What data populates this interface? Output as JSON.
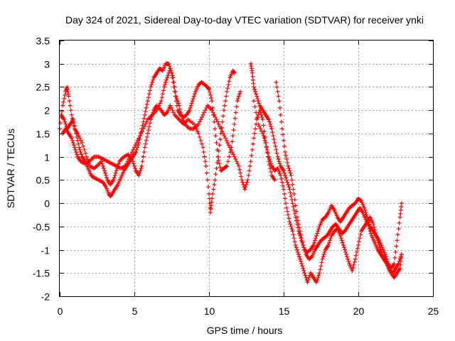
{
  "chart_data": {
    "type": "scatter",
    "title": "Day 324 of 2021, Sidereal Day-to-day VTEC variation (SDTVAR) for receiver ynki",
    "xlabel": "GPS time / hours",
    "ylabel": "SDTVAR / TECUs",
    "xlim": [
      0,
      25
    ],
    "ylim": [
      -2,
      3.5
    ],
    "xticks": [
      0,
      5,
      10,
      15,
      20,
      25
    ],
    "yticks": [
      -2,
      -1.5,
      -1,
      -0.5,
      0,
      0.5,
      1,
      1.5,
      2,
      2.5,
      3,
      3.5
    ],
    "grid": true,
    "marker": "+",
    "color": "#ff0000",
    "series": [
      {
        "values": [
          [
            0.0,
            1.6
          ],
          [
            0.2,
            2.1
          ],
          [
            0.4,
            2.4
          ],
          [
            0.5,
            2.5
          ],
          [
            0.6,
            2.3
          ],
          [
            0.8,
            1.9
          ],
          [
            1.0,
            1.6
          ],
          [
            1.2,
            1.5
          ],
          [
            1.5,
            1.3
          ],
          [
            1.8,
            1.0
          ],
          [
            2.0,
            0.8
          ],
          [
            2.3,
            0.75
          ],
          [
            2.5,
            0.8
          ],
          [
            2.8,
            0.9
          ],
          [
            3.0,
            0.7
          ],
          [
            3.2,
            0.5
          ],
          [
            3.4,
            0.4
          ],
          [
            3.6,
            0.5
          ],
          [
            3.8,
            0.7
          ],
          [
            4.0,
            0.9
          ],
          [
            4.3,
            1.0
          ],
          [
            4.6,
            1.05
          ],
          [
            4.9,
            0.9
          ],
          [
            5.1,
            0.7
          ],
          [
            5.3,
            0.6
          ],
          [
            5.5,
            0.8
          ],
          [
            5.7,
            1.2
          ],
          [
            5.9,
            1.5
          ],
          [
            6.1,
            1.8
          ],
          [
            6.3,
            2.0
          ],
          [
            6.5,
            2.1
          ],
          [
            6.8,
            2.0
          ],
          [
            7.0,
            1.9
          ],
          [
            7.2,
            1.95
          ],
          [
            7.4,
            2.1
          ],
          [
            7.7,
            1.9
          ],
          [
            8.0,
            1.8
          ],
          [
            8.3,
            1.7
          ],
          [
            8.6,
            1.8
          ],
          [
            9.0,
            1.7
          ],
          [
            9.3,
            1.5
          ],
          [
            9.6,
            1.2
          ],
          [
            9.8,
            0.8
          ],
          [
            10.0,
            0.2
          ],
          [
            10.1,
            -0.2
          ],
          [
            10.2,
            0.1
          ],
          [
            10.4,
            0.5
          ],
          [
            10.6,
            1.0
          ],
          [
            10.8,
            1.5
          ],
          [
            11.0,
            2.0
          ],
          [
            11.2,
            2.4
          ],
          [
            11.4,
            2.7
          ],
          [
            11.6,
            2.85
          ],
          [
            11.7,
            2.8
          ]
        ]
      },
      {
        "values": [
          [
            0.1,
            1.9
          ],
          [
            0.3,
            1.8
          ],
          [
            0.5,
            1.6
          ],
          [
            0.7,
            1.7
          ],
          [
            0.9,
            1.8
          ],
          [
            1.1,
            1.5
          ],
          [
            1.3,
            1.2
          ],
          [
            1.5,
            1.0
          ],
          [
            1.7,
            0.9
          ],
          [
            1.9,
            0.75
          ],
          [
            2.1,
            0.6
          ],
          [
            2.3,
            0.55
          ],
          [
            2.6,
            0.5
          ],
          [
            2.9,
            0.45
          ],
          [
            3.1,
            0.35
          ],
          [
            3.3,
            0.2
          ],
          [
            3.4,
            0.15
          ],
          [
            3.5,
            0.2
          ],
          [
            3.7,
            0.3
          ],
          [
            3.9,
            0.4
          ],
          [
            4.1,
            0.55
          ],
          [
            4.3,
            0.7
          ],
          [
            4.5,
            0.8
          ],
          [
            4.7,
            0.9
          ],
          [
            4.9,
            1.0
          ],
          [
            5.1,
            1.1
          ],
          [
            5.3,
            1.3
          ],
          [
            5.5,
            1.6
          ],
          [
            5.7,
            1.9
          ],
          [
            5.9,
            2.2
          ],
          [
            6.1,
            2.5
          ],
          [
            6.3,
            2.7
          ],
          [
            6.5,
            2.8
          ],
          [
            6.7,
            2.9
          ],
          [
            6.9,
            2.85
          ],
          [
            7.1,
            3.0
          ],
          [
            7.3,
            3.0
          ],
          [
            7.5,
            2.8
          ],
          [
            7.7,
            2.4
          ],
          [
            7.9,
            2.0
          ],
          [
            8.1,
            1.9
          ],
          [
            8.3,
            1.85
          ],
          [
            8.5,
            1.9
          ],
          [
            8.7,
            2.0
          ],
          [
            8.9,
            2.2
          ],
          [
            9.1,
            2.4
          ],
          [
            9.3,
            2.55
          ],
          [
            9.5,
            2.6
          ],
          [
            9.7,
            2.55
          ],
          [
            9.9,
            2.5
          ],
          [
            10.0,
            2.45
          ],
          [
            10.2,
            2.2
          ],
          [
            10.4,
            1.6
          ],
          [
            10.6,
            1.0
          ],
          [
            10.8,
            0.7
          ],
          [
            11.0,
            0.75
          ],
          [
            11.2,
            0.8
          ],
          [
            11.5,
            1.2
          ],
          [
            11.7,
            1.7
          ],
          [
            11.9,
            2.2
          ],
          [
            12.1,
            2.4
          ]
        ]
      },
      {
        "values": [
          [
            0.2,
            1.5
          ],
          [
            0.4,
            1.6
          ],
          [
            0.6,
            1.5
          ],
          [
            0.8,
            1.4
          ],
          [
            1.0,
            1.2
          ],
          [
            1.2,
            1.0
          ],
          [
            1.4,
            0.9
          ],
          [
            1.7,
            0.85
          ],
          [
            2.0,
            0.9
          ],
          [
            2.3,
            1.0
          ],
          [
            2.6,
            1.0
          ],
          [
            2.9,
            0.95
          ],
          [
            3.2,
            0.9
          ],
          [
            3.5,
            0.85
          ],
          [
            3.8,
            0.8
          ],
          [
            4.1,
            0.75
          ],
          [
            4.4,
            0.8
          ],
          [
            4.7,
            1.0
          ],
          [
            5.0,
            1.2
          ],
          [
            5.3,
            1.4
          ],
          [
            5.6,
            1.6
          ],
          [
            5.9,
            1.8
          ],
          [
            6.2,
            1.9
          ],
          [
            6.5,
            2.0
          ],
          [
            6.8,
            2.2
          ],
          [
            7.0,
            2.5
          ],
          [
            7.2,
            2.7
          ],
          [
            7.4,
            2.9
          ],
          [
            7.6,
            2.7
          ],
          [
            7.8,
            2.3
          ],
          [
            8.0,
            2.1
          ],
          [
            8.2,
            1.8
          ],
          [
            8.4,
            1.7
          ],
          [
            8.7,
            1.6
          ],
          [
            9.0,
            1.6
          ],
          [
            9.3,
            1.7
          ],
          [
            9.6,
            1.9
          ],
          [
            9.9,
            2.1
          ],
          [
            10.2,
            2.0
          ],
          [
            10.5,
            1.8
          ],
          [
            10.8,
            1.6
          ],
          [
            11.1,
            1.4
          ],
          [
            11.4,
            1.2
          ],
          [
            11.7,
            1.0
          ],
          [
            12.0,
            0.8
          ],
          [
            12.2,
            0.5
          ],
          [
            12.4,
            0.3
          ],
          [
            12.6,
            0.5
          ],
          [
            12.8,
            0.9
          ],
          [
            13.0,
            1.4
          ],
          [
            13.2,
            1.8
          ],
          [
            13.4,
            2.0
          ],
          [
            13.6,
            1.8
          ],
          [
            13.8,
            1.3
          ],
          [
            14.0,
            0.9
          ],
          [
            14.2,
            0.6
          ],
          [
            14.4,
            0.5
          ]
        ]
      },
      {
        "values": [
          [
            12.8,
            3.0
          ],
          [
            12.9,
            2.8
          ],
          [
            13.0,
            2.5
          ],
          [
            13.2,
            2.3
          ],
          [
            13.4,
            2.1
          ],
          [
            13.6,
            2.0
          ],
          [
            13.8,
            1.9
          ],
          [
            14.0,
            1.8
          ],
          [
            14.2,
            1.6
          ],
          [
            14.4,
            1.3
          ],
          [
            14.6,
            1.0
          ],
          [
            14.8,
            0.8
          ],
          [
            15.0,
            0.7
          ],
          [
            15.2,
            0.5
          ],
          [
            15.4,
            0.3
          ],
          [
            15.6,
            0.0
          ],
          [
            15.8,
            -0.3
          ],
          [
            16.0,
            -0.6
          ],
          [
            16.2,
            -0.8
          ],
          [
            16.4,
            -1.0
          ],
          [
            16.6,
            -1.05
          ],
          [
            16.8,
            -1.0
          ],
          [
            17.0,
            -0.9
          ],
          [
            17.2,
            -0.7
          ],
          [
            17.4,
            -0.5
          ],
          [
            17.6,
            -0.35
          ],
          [
            17.8,
            -0.3
          ],
          [
            18.0,
            -0.2
          ],
          [
            18.2,
            -0.05
          ],
          [
            18.4,
            -0.15
          ],
          [
            18.6,
            -0.3
          ],
          [
            18.8,
            -0.4
          ],
          [
            19.0,
            -0.3
          ],
          [
            19.2,
            -0.2
          ],
          [
            19.4,
            -0.1
          ],
          [
            19.6,
            -0.05
          ],
          [
            19.8,
            0.0
          ],
          [
            20.0,
            0.1
          ],
          [
            20.2,
            0.05
          ],
          [
            20.4,
            -0.1
          ],
          [
            20.6,
            -0.3
          ],
          [
            20.8,
            -0.5
          ],
          [
            21.0,
            -0.6
          ],
          [
            21.2,
            -0.7
          ],
          [
            21.4,
            -0.8
          ],
          [
            21.6,
            -0.95
          ],
          [
            21.8,
            -1.1
          ],
          [
            22.0,
            -1.3
          ],
          [
            22.2,
            -1.4
          ],
          [
            22.4,
            -1.3
          ],
          [
            22.6,
            -0.8
          ],
          [
            22.8,
            -0.3
          ],
          [
            22.9,
            0.0
          ]
        ]
      },
      {
        "values": [
          [
            13.0,
            2.2
          ],
          [
            13.3,
            1.7
          ],
          [
            13.6,
            1.5
          ],
          [
            13.8,
            1.3
          ],
          [
            14.0,
            1.0
          ],
          [
            14.2,
            0.8
          ],
          [
            14.4,
            0.7
          ],
          [
            14.6,
            0.75
          ],
          [
            14.8,
            0.6
          ],
          [
            15.0,
            0.3
          ],
          [
            15.2,
            -0.1
          ],
          [
            15.4,
            -0.4
          ],
          [
            15.6,
            -0.6
          ],
          [
            15.8,
            -0.9
          ],
          [
            16.0,
            -1.1
          ],
          [
            16.2,
            -1.3
          ],
          [
            16.4,
            -1.5
          ],
          [
            16.6,
            -1.7
          ],
          [
            16.8,
            -1.5
          ],
          [
            17.0,
            -1.6
          ],
          [
            17.2,
            -1.7
          ],
          [
            17.4,
            -1.5
          ],
          [
            17.6,
            -1.2
          ],
          [
            17.8,
            -1.0
          ],
          [
            18.0,
            -0.9
          ],
          [
            18.2,
            -0.7
          ],
          [
            18.4,
            -0.6
          ],
          [
            18.6,
            -0.55
          ],
          [
            18.8,
            -0.7
          ],
          [
            19.0,
            -0.9
          ],
          [
            19.2,
            -1.1
          ],
          [
            19.4,
            -1.3
          ],
          [
            19.6,
            -1.45
          ],
          [
            19.8,
            -1.2
          ],
          [
            20.0,
            -0.9
          ],
          [
            20.2,
            -0.6
          ],
          [
            20.4,
            -0.5
          ],
          [
            20.6,
            -0.4
          ],
          [
            20.8,
            -0.3
          ],
          [
            21.0,
            -0.45
          ],
          [
            21.2,
            -0.7
          ],
          [
            21.4,
            -0.9
          ],
          [
            21.6,
            -1.1
          ],
          [
            21.8,
            -1.2
          ],
          [
            22.0,
            -1.35
          ],
          [
            22.2,
            -1.5
          ],
          [
            22.4,
            -1.6
          ],
          [
            22.6,
            -1.5
          ],
          [
            22.8,
            -1.4
          ],
          [
            22.9,
            -1.1
          ]
        ]
      },
      {
        "values": [
          [
            14.5,
            2.6
          ],
          [
            14.7,
            2.2
          ],
          [
            14.9,
            1.6
          ],
          [
            15.1,
            1.1
          ],
          [
            15.3,
            0.8
          ],
          [
            15.5,
            0.6
          ],
          [
            15.7,
            0.2
          ],
          [
            15.9,
            -0.3
          ],
          [
            16.1,
            -0.6
          ],
          [
            16.3,
            -0.9
          ],
          [
            16.5,
            -1.1
          ],
          [
            16.7,
            -1.2
          ],
          [
            16.9,
            -1.15
          ],
          [
            17.1,
            -1.0
          ],
          [
            17.3,
            -0.9
          ],
          [
            17.5,
            -0.8
          ],
          [
            17.7,
            -0.75
          ],
          [
            17.9,
            -0.7
          ],
          [
            18.1,
            -0.6
          ],
          [
            18.3,
            -0.5
          ],
          [
            18.5,
            -0.45
          ],
          [
            18.7,
            -0.55
          ],
          [
            18.9,
            -0.65
          ],
          [
            19.1,
            -0.6
          ],
          [
            19.3,
            -0.5
          ],
          [
            19.5,
            -0.4
          ],
          [
            19.7,
            -0.3
          ],
          [
            19.9,
            -0.2
          ],
          [
            20.1,
            -0.1
          ],
          [
            20.3,
            -0.2
          ],
          [
            20.5,
            -0.35
          ],
          [
            20.7,
            -0.5
          ],
          [
            20.9,
            -0.7
          ],
          [
            21.1,
            -0.85
          ],
          [
            21.3,
            -1.0
          ],
          [
            21.5,
            -1.1
          ],
          [
            21.7,
            -1.2
          ],
          [
            21.9,
            -1.3
          ],
          [
            22.1,
            -1.45
          ],
          [
            22.3,
            -1.5
          ],
          [
            22.5,
            -1.4
          ],
          [
            22.7,
            -1.3
          ],
          [
            22.9,
            -1.1
          ]
        ]
      }
    ]
  }
}
